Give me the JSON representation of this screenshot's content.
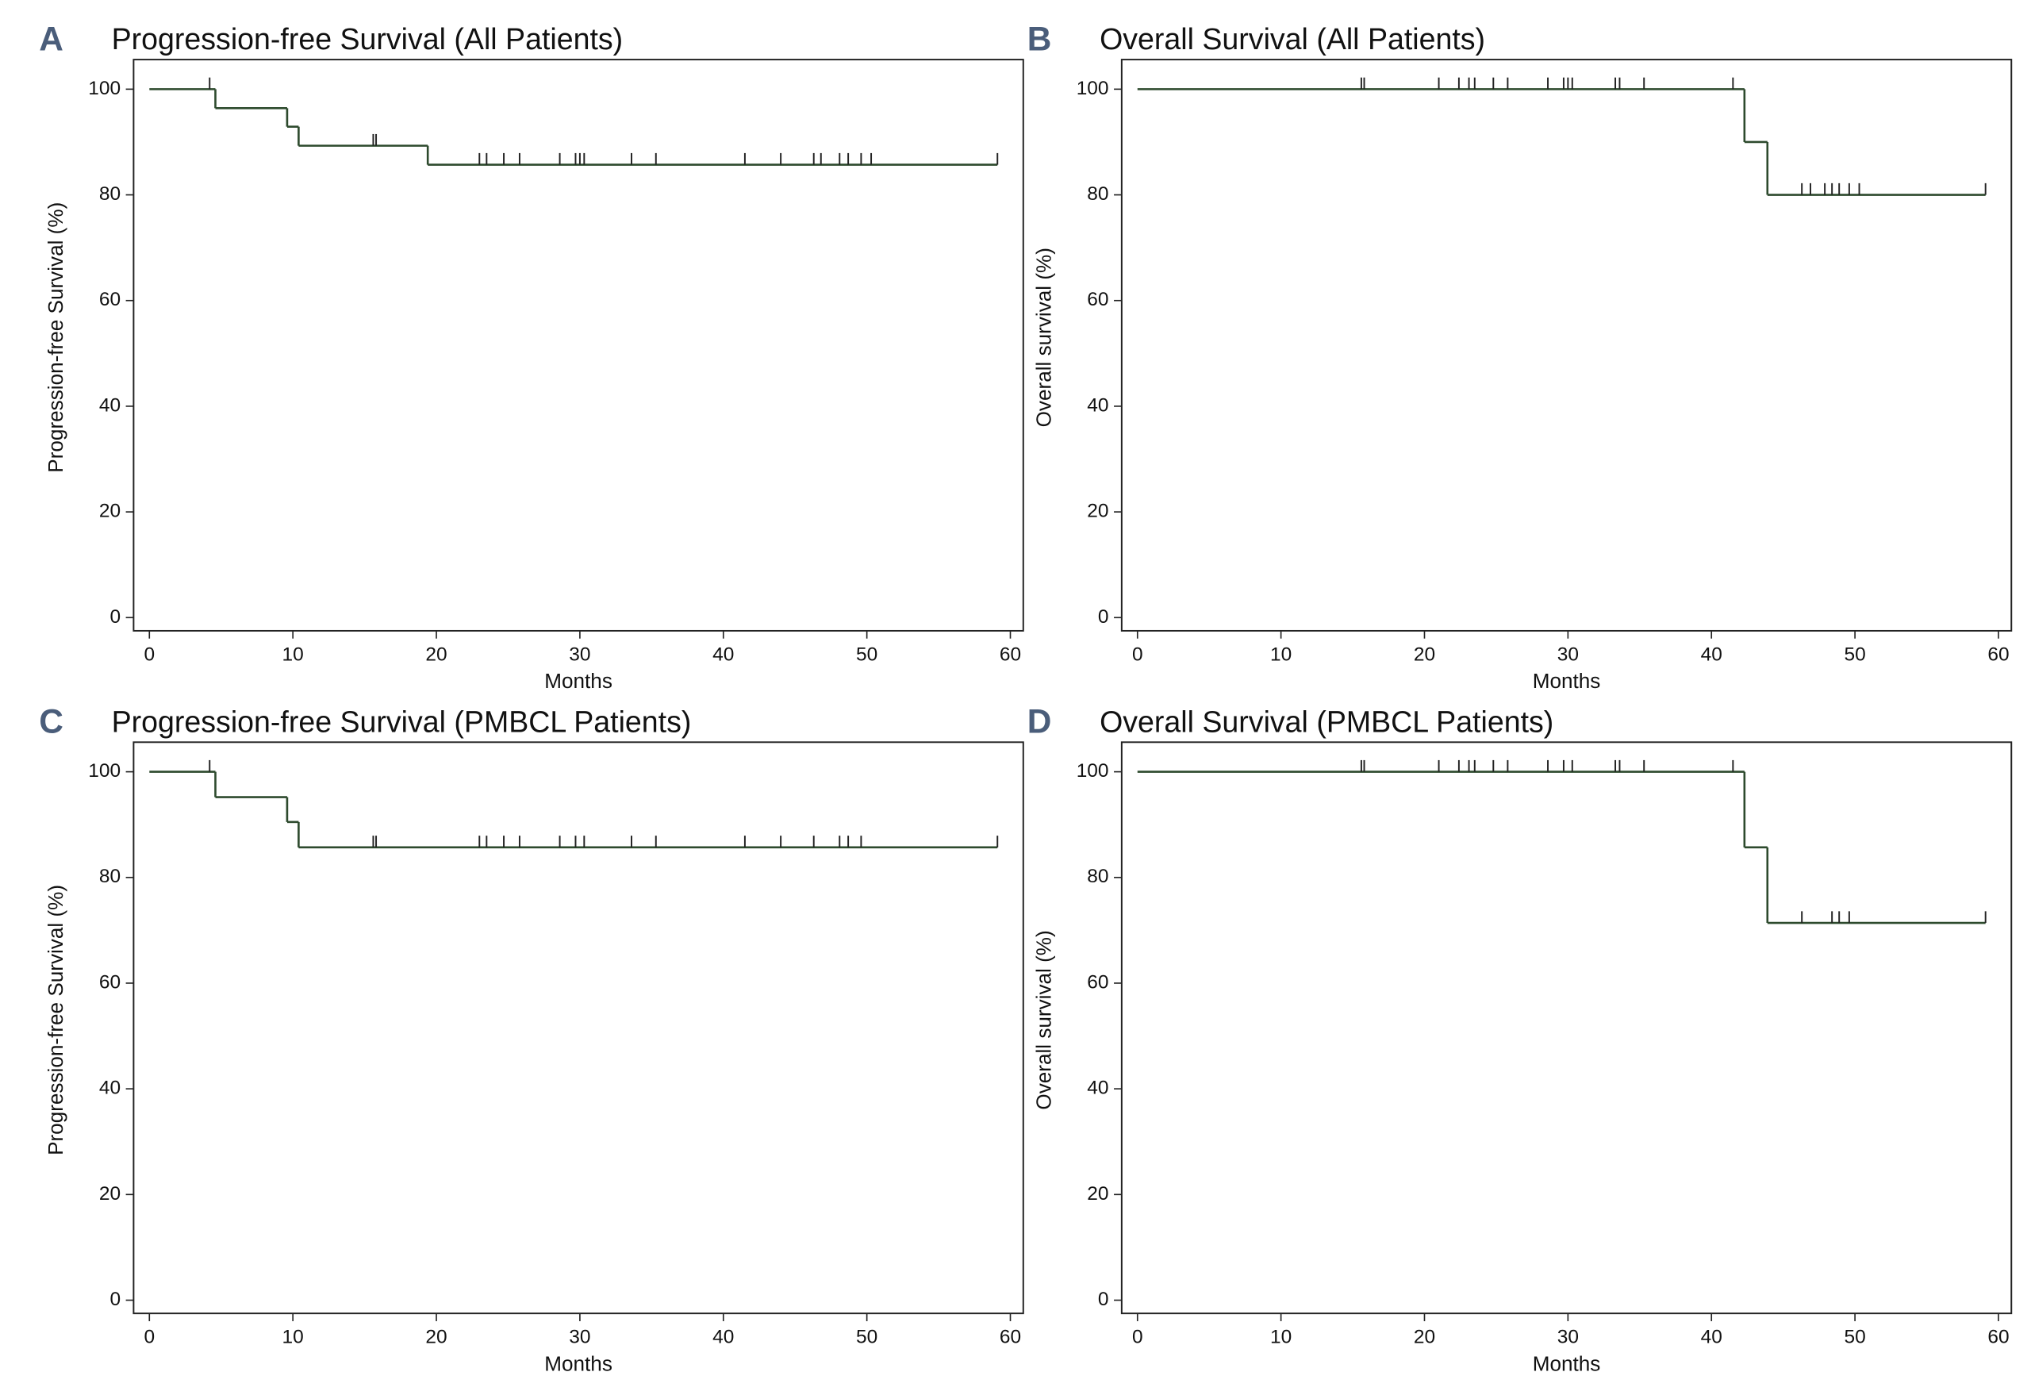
{
  "chart_data": [
    {
      "type": "step",
      "panel": "A",
      "title": "Progression-free Survival (All Patients)",
      "xlabel": "Months",
      "ylabel": "Progression-free Survival (%)",
      "xlim": [
        -1.1,
        60.9
      ],
      "ylim": [
        -2.5,
        105.6
      ],
      "xticks": [
        0,
        10,
        20,
        30,
        40,
        50,
        60
      ],
      "yticks": [
        0,
        20,
        40,
        60,
        80,
        100
      ],
      "series": [
        {
          "style": "step",
          "color": "#2d4a2d",
          "x": [
            0,
            4.6,
            9.6,
            10.4,
            19.4,
            59.1
          ],
          "values": [
            100,
            96.4,
            92.9,
            89.3,
            85.7,
            85.7
          ]
        },
        {
          "style": "censor",
          "color": "#222222",
          "x": [
            4.2,
            15.6,
            15.8,
            23.0,
            23.5,
            24.7,
            25.8,
            28.6,
            29.7,
            30.0,
            30.3,
            33.6,
            35.3,
            41.5,
            44.0,
            46.3,
            46.8,
            48.1,
            48.7,
            49.6,
            50.3,
            59.1
          ],
          "values": [
            100,
            89.3,
            89.3,
            85.7,
            85.7,
            85.7,
            85.7,
            85.7,
            85.7,
            85.7,
            85.7,
            85.7,
            85.7,
            85.7,
            85.7,
            85.7,
            85.7,
            85.7,
            85.7,
            85.7,
            85.7,
            85.7
          ]
        }
      ]
    },
    {
      "type": "step",
      "panel": "B",
      "title": "Overall Survival (All Patients)",
      "xlabel": "Months",
      "ylabel": "Overall survival (%)",
      "xlim": [
        -1.1,
        60.9
      ],
      "ylim": [
        -2.5,
        105.6
      ],
      "xticks": [
        0,
        10,
        20,
        30,
        40,
        50,
        60
      ],
      "yticks": [
        0,
        20,
        40,
        60,
        80,
        100
      ],
      "series": [
        {
          "style": "step",
          "color": "#2d4a2d",
          "x": [
            0,
            42.3,
            43.9,
            59.1
          ],
          "values": [
            100,
            90,
            80,
            80
          ]
        },
        {
          "style": "censor",
          "color": "#222222",
          "x": [
            15.6,
            15.8,
            21.0,
            22.4,
            23.1,
            23.5,
            24.8,
            25.8,
            28.6,
            29.7,
            30.0,
            30.3,
            33.3,
            33.6,
            35.3,
            41.5,
            46.3,
            46.9,
            47.9,
            48.4,
            48.9,
            49.6,
            50.3,
            59.1
          ],
          "values": [
            100,
            100,
            100,
            100,
            100,
            100,
            100,
            100,
            100,
            100,
            100,
            100,
            100,
            100,
            100,
            100,
            80,
            80,
            80,
            80,
            80,
            80,
            80,
            80
          ]
        }
      ]
    },
    {
      "type": "step",
      "panel": "C",
      "title": "Progression-free Survival (PMBCL Patients)",
      "xlabel": "Months",
      "ylabel": "Progression-free Survival (%)",
      "xlim": [
        -1.1,
        60.9
      ],
      "ylim": [
        -2.5,
        105.6
      ],
      "xticks": [
        0,
        10,
        20,
        30,
        40,
        50,
        60
      ],
      "yticks": [
        0,
        20,
        40,
        60,
        80,
        100
      ],
      "series": [
        {
          "style": "step",
          "color": "#2d4a2d",
          "x": [
            0,
            4.6,
            9.6,
            10.4,
            59.1
          ],
          "values": [
            100,
            95.2,
            90.5,
            85.7,
            85.7
          ]
        },
        {
          "style": "censor",
          "color": "#222222",
          "x": [
            4.2,
            15.6,
            15.8,
            23.0,
            23.5,
            24.7,
            25.8,
            28.6,
            29.7,
            30.3,
            33.6,
            35.3,
            41.5,
            44.0,
            46.3,
            48.1,
            48.7,
            49.6,
            59.1
          ],
          "values": [
            100,
            85.7,
            85.7,
            85.7,
            85.7,
            85.7,
            85.7,
            85.7,
            85.7,
            85.7,
            85.7,
            85.7,
            85.7,
            85.7,
            85.7,
            85.7,
            85.7,
            85.7,
            85.7
          ]
        }
      ]
    },
    {
      "type": "step",
      "panel": "D",
      "title": "Overall Survival (PMBCL Patients)",
      "xlabel": "Months",
      "ylabel": "Overall survival (%)",
      "xlim": [
        -1.1,
        60.9
      ],
      "ylim": [
        -2.5,
        105.6
      ],
      "xticks": [
        0,
        10,
        20,
        30,
        40,
        50,
        60
      ],
      "yticks": [
        0,
        20,
        40,
        60,
        80,
        100
      ],
      "series": [
        {
          "style": "step",
          "color": "#2d4a2d",
          "x": [
            0,
            42.3,
            43.9,
            59.1
          ],
          "values": [
            100,
            85.7,
            71.4,
            71.4
          ]
        },
        {
          "style": "censor",
          "color": "#222222",
          "x": [
            15.6,
            15.8,
            21.0,
            22.4,
            23.1,
            23.5,
            24.8,
            25.8,
            28.6,
            29.7,
            30.3,
            33.3,
            33.6,
            35.3,
            41.5,
            46.3,
            48.4,
            48.9,
            49.6,
            59.1
          ],
          "values": [
            100,
            100,
            100,
            100,
            100,
            100,
            100,
            100,
            100,
            100,
            100,
            100,
            100,
            100,
            100,
            71.4,
            71.4,
            71.4,
            71.4,
            71.4
          ]
        }
      ]
    }
  ]
}
